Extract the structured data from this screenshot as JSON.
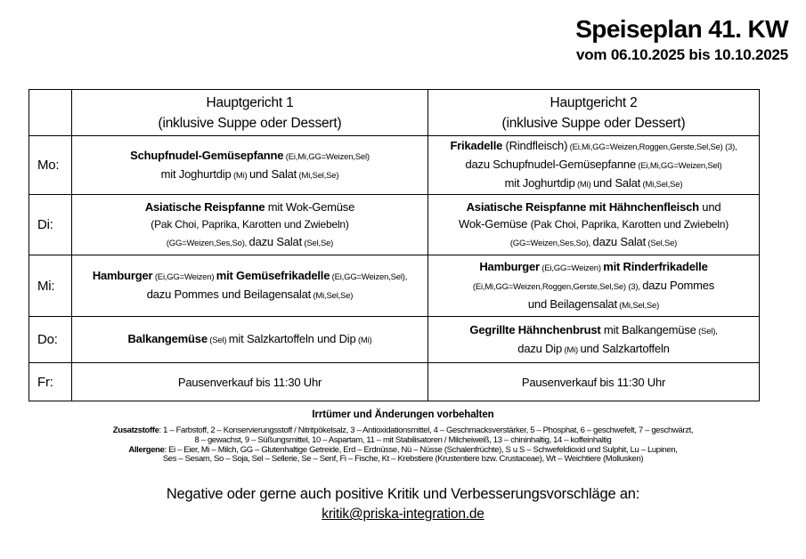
{
  "header": {
    "title": "Speiseplan 41. KW",
    "subtitle": "vom 06.10.2025 bis 10.10.2025"
  },
  "table": {
    "columns": [
      {
        "line1": "Hauptgericht 1",
        "line2": "(inklusive Suppe oder Dessert)"
      },
      {
        "line1": "Hauptgericht 2",
        "line2": "(inklusive Suppe oder Dessert)"
      }
    ],
    "rows": [
      {
        "day": "Mo:",
        "meal1": [
          [
            {
              "t": "Schupfnudel-Gemüsepfanne",
              "s": "b"
            },
            {
              "t": " (Ei,Mi,GG=Weizen,Sel)",
              "s": "s"
            }
          ],
          [
            {
              "t": "mit Joghurtdip",
              "s": "n"
            },
            {
              "t": " (Mi) ",
              "s": "s"
            },
            {
              "t": "und Salat",
              "s": "n"
            },
            {
              "t": " (Mi,Sel,Se)",
              "s": "s"
            }
          ]
        ],
        "meal2": [
          [
            {
              "t": "Frikadelle",
              "s": "b"
            },
            {
              "t": " (Rindfleisch)",
              "s": "n"
            },
            {
              "t": " (Ei,Mi,GG=Weizen,Roggen,Gerste,Sel,Se) (3),",
              "s": "s"
            }
          ],
          [
            {
              "t": "dazu Schupfnudel-Gemüsepfanne",
              "s": "n"
            },
            {
              "t": " (Ei,Mi,GG=Weizen,Sel)",
              "s": "s"
            }
          ],
          [
            {
              "t": "mit Joghurtdip",
              "s": "n"
            },
            {
              "t": " (Mi) ",
              "s": "s"
            },
            {
              "t": "und Salat",
              "s": "n"
            },
            {
              "t": " (Mi,Sel,Se)",
              "s": "s"
            }
          ]
        ]
      },
      {
        "day": "Di:",
        "meal1": [
          [
            {
              "t": "Asiatische Reispfanne",
              "s": "b"
            },
            {
              "t": " mit Wok-Gemüse",
              "s": "n"
            }
          ],
          [
            {
              "t": "(Pak Choi, Paprika, Karotten und Zwiebeln)",
              "s": "m"
            }
          ],
          [
            {
              "t": "(GG=Weizen,Ses,So), ",
              "s": "s"
            },
            {
              "t": "dazu Salat",
              "s": "n"
            },
            {
              "t": " (Sel,Se)",
              "s": "s"
            }
          ]
        ],
        "meal2": [
          [
            {
              "t": "Asiatische Reispfanne mit Hähnchenfleisch",
              "s": "b"
            },
            {
              "t": " und",
              "s": "n"
            }
          ],
          [
            {
              "t": "Wok-Gemüse ",
              "s": "n"
            },
            {
              "t": "(Pak Choi, Paprika, Karotten und Zwiebeln)",
              "s": "m"
            }
          ],
          [
            {
              "t": "(GG=Weizen,Ses,So), ",
              "s": "s"
            },
            {
              "t": "dazu Salat",
              "s": "n"
            },
            {
              "t": " (Sel,Se)",
              "s": "s"
            }
          ]
        ]
      },
      {
        "day": "Mi:",
        "meal1": [
          [
            {
              "t": "Hamburger",
              "s": "b"
            },
            {
              "t": " (Ei,GG=Weizen) ",
              "s": "s"
            },
            {
              "t": "mit Gemüsefrikadelle",
              "s": "b"
            },
            {
              "t": " (Ei,GG=Weizen,Sel),",
              "s": "s"
            }
          ],
          [
            {
              "t": "dazu Pommes und Beilagensalat",
              "s": "n"
            },
            {
              "t": " (Mi,Sel,Se)",
              "s": "s"
            }
          ]
        ],
        "meal2": [
          [
            {
              "t": "Hamburger",
              "s": "b"
            },
            {
              "t": " (Ei,GG=Weizen) ",
              "s": "s"
            },
            {
              "t": "mit Rinderfrikadelle",
              "s": "b"
            }
          ],
          [
            {
              "t": "(Ei,Mi,GG=Weizen,Roggen,Gerste,Sel,Se) (3), ",
              "s": "s"
            },
            {
              "t": "dazu Pommes",
              "s": "n"
            }
          ],
          [
            {
              "t": "und Beilagensalat",
              "s": "n"
            },
            {
              "t": " (Mi,Sel,Se)",
              "s": "s"
            }
          ]
        ]
      },
      {
        "day": "Do:",
        "meal1": [
          [
            {
              "t": "Balkangemüse",
              "s": "b"
            },
            {
              "t": " (Sel) ",
              "s": "s"
            },
            {
              "t": "mit Salzkartoffeln und Dip",
              "s": "n"
            },
            {
              "t": " (Mi)",
              "s": "s"
            }
          ]
        ],
        "meal2": [
          [
            {
              "t": "Gegrillte Hähnchenbrust",
              "s": "b"
            },
            {
              "t": " mit Balkangemüse",
              "s": "n"
            },
            {
              "t": " (Sel),",
              "s": "s"
            }
          ],
          [
            {
              "t": "dazu Dip",
              "s": "n"
            },
            {
              "t": " (Mi) ",
              "s": "s"
            },
            {
              "t": "und Salzkartoffeln",
              "s": "n"
            }
          ]
        ]
      },
      {
        "day": "Fr:",
        "meal1": [
          [
            {
              "t": "Pausenverkauf bis 11:30 Uhr",
              "s": "n"
            }
          ]
        ],
        "meal2": [
          [
            {
              "t": "Pausenverkauf bis 11:30 Uhr",
              "s": "n"
            }
          ]
        ]
      }
    ]
  },
  "footer": {
    "notice": "Irrtümer und Änderungen vorbehalten",
    "zusatzstoffe": [
      [
        {
          "t": "Zusatzstoffe",
          "s": "b"
        },
        {
          "t": ": 1 – Farbstoff, 2 – Konservierungsstoff / Nitritpökelsalz, 3 – Antioxidationsmittel, 4 – Geschmacksverstärker, 5 – Phosphat, 6 – geschwefelt, 7 – geschwärzt,",
          "s": "n"
        }
      ],
      [
        {
          "t": "8 – gewachst, 9 – Süßungsmittel, 10 – Aspartam, 11 – mit Stabilisatoren / Milcheiweiß, 13 – chininhaltig, 14 – koffeinhaltig",
          "s": "n"
        }
      ]
    ],
    "allergene": [
      [
        {
          "t": "Allergene",
          "s": "b"
        },
        {
          "t": ": Ei – Eier, Mi – Milch, GG – Glutenhaltige Getreide, Erd – Erdnüsse, Nü – Nüsse (Schalenfrüchte), S u S – Schwefeldioxid und Sulphit, Lu – Lupinen,",
          "s": "n"
        }
      ],
      [
        {
          "t": "Ses – Sesam, So – Soja, Sel – Sellerie, Se – Senf, Fi – Fische, Kt – Krebstiere (Krustentiere bzw. Crustaceae), Wt – Weichtiere (Mollusken)",
          "s": "n"
        }
      ]
    ],
    "feedback": "Negative oder gerne auch positive Kritik und Verbesserungsvorschläge an:",
    "email": "kritik@priska-integration.de"
  }
}
